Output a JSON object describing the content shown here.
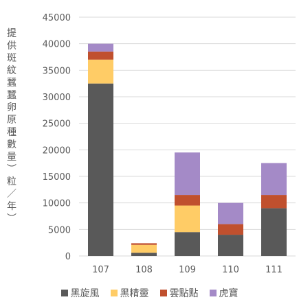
{
  "chart_data": {
    "type": "bar",
    "stacked": true,
    "categories": [
      "107",
      "108",
      "109",
      "110",
      "111"
    ],
    "series": [
      {
        "name": "黑旋風",
        "color": "#595959",
        "values": [
          32500,
          600,
          4500,
          4000,
          9000
        ]
      },
      {
        "name": "黑精靈",
        "color": "#FFCC66",
        "values": [
          4500,
          1500,
          5000,
          0,
          0
        ]
      },
      {
        "name": "雲點點",
        "color": "#C0502E",
        "values": [
          1500,
          300,
          2000,
          2000,
          2500
        ]
      },
      {
        "name": "虎寶",
        "color": "#A48AC7",
        "values": [
          1500,
          0,
          8000,
          4000,
          6000
        ]
      }
    ],
    "ylabel": "提\n供\n斑\n紋\n蠶\n蠶\n卵\n原\n種\n數\n量\n︶\n粒\n／\n年\n︶",
    "ylim": [
      0,
      45000
    ],
    "yticks": [
      0,
      5000,
      10000,
      15000,
      20000,
      25000,
      30000,
      35000,
      40000,
      45000
    ],
    "grid": true,
    "legend_position": "bottom"
  }
}
